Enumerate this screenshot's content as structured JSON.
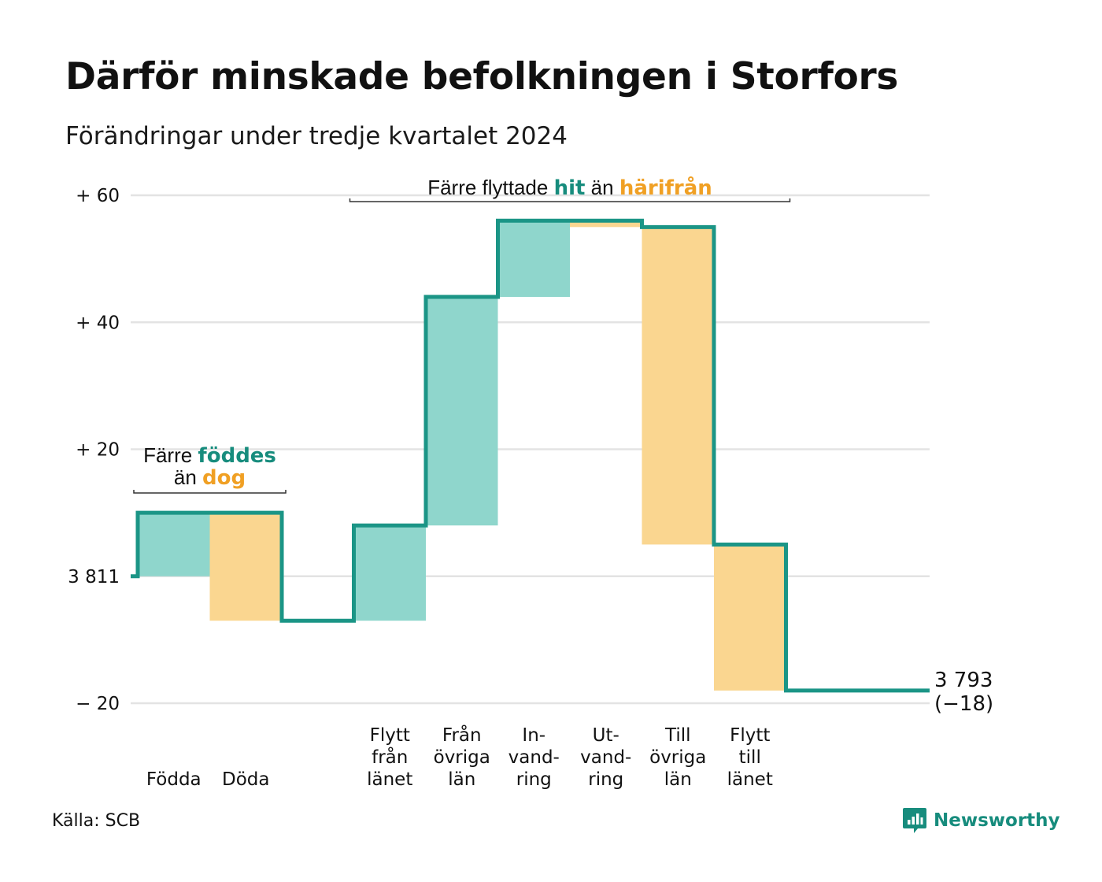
{
  "title": "Därför minskade befolkningen i Storfors",
  "subtitle": "Förändringar under tredje kvartalet 2024",
  "source": "Källa: SCB",
  "brand": "Newsworthy",
  "colors": {
    "teal_line": "#1b9586",
    "teal_fill": "#8fd6cc",
    "orange_fill": "#fad690",
    "teal_text": "#178c7d",
    "orange_text": "#f0a024",
    "grid": "#e3e3e3"
  },
  "chart_data": {
    "type": "waterfall",
    "start_value": 3811,
    "start_label": "3 811",
    "end_label": "3 793",
    "end_change_label": "(−18)",
    "yrange": [
      -20,
      60
    ],
    "yticks": [
      {
        "value": 60,
        "label": "+ 60"
      },
      {
        "value": 40,
        "label": "+ 40"
      },
      {
        "value": 20,
        "label": "+ 20"
      },
      {
        "value": 0,
        "label": "3 811"
      },
      {
        "value": -20,
        "label": "− 20"
      }
    ],
    "steps": [
      {
        "label": [
          "Födda"
        ],
        "change": 10,
        "kind": "in"
      },
      {
        "label": [
          "Döda"
        ],
        "change": -17,
        "kind": "out"
      },
      {
        "label": [
          ""
        ],
        "change": 0,
        "kind": "gap"
      },
      {
        "label": [
          "Flytt",
          "från",
          "länet"
        ],
        "change": 15,
        "kind": "in"
      },
      {
        "label": [
          "Från",
          "övriga",
          "län"
        ],
        "change": 36,
        "kind": "in"
      },
      {
        "label": [
          "In-",
          "vand-",
          "ring"
        ],
        "change": 12,
        "kind": "in"
      },
      {
        "label": [
          "Ut-",
          "vand-",
          "ring"
        ],
        "change": -1,
        "kind": "out"
      },
      {
        "label": [
          "Till",
          "övriga",
          "län"
        ],
        "change": -50,
        "kind": "out"
      },
      {
        "label": [
          "Flytt",
          "till",
          "länet"
        ],
        "change": -23,
        "kind": "out"
      },
      {
        "label": [
          ""
        ],
        "change": 0,
        "kind": "gap"
      }
    ],
    "annotations": [
      {
        "parts": [
          {
            "text": "Färre ",
            "style": "plain"
          },
          {
            "text": "föddes",
            "style": "teal"
          }
        ],
        "parts2": [
          {
            "text": "än ",
            "style": "plain"
          },
          {
            "text": "dog",
            "style": "orange"
          }
        ],
        "from_step": 0,
        "to_step": 1
      },
      {
        "parts": [
          {
            "text": "Färre flyttade ",
            "style": "plain"
          },
          {
            "text": "hit",
            "style": "teal"
          },
          {
            "text": " än ",
            "style": "plain"
          },
          {
            "text": "härifrån",
            "style": "orange"
          }
        ],
        "from_step": 3,
        "to_step": 8
      }
    ]
  }
}
